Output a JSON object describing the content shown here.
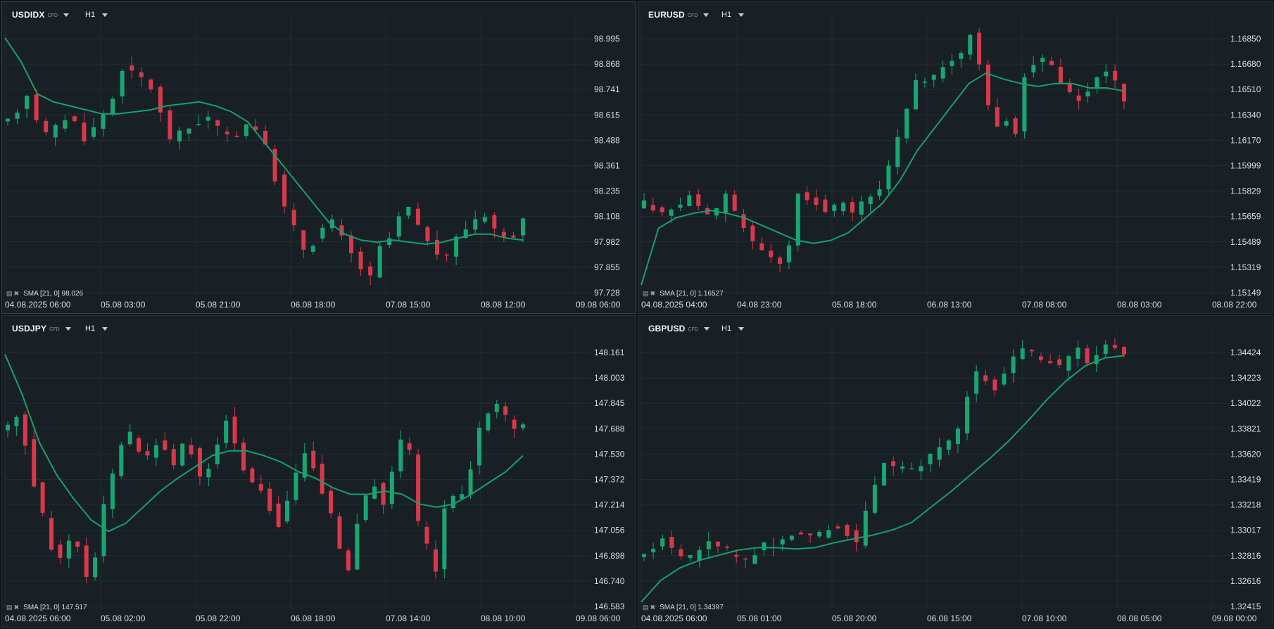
{
  "colors": {
    "bg": "#182025",
    "grid": "#222c33",
    "up": "#17a673",
    "down": "#d9384b",
    "sma": "#15a06c",
    "text": "#d7dce1"
  },
  "icons": {
    "chart_icon": "chart-settings-icon",
    "close": "close-icon",
    "dropdown": "chevron-down-icon"
  },
  "panels": [
    {
      "symbol": "USDIDX",
      "tag": "CFD",
      "timeframe": "H1",
      "indicator": {
        "name": "SMA",
        "params": "[21, 0]",
        "value": "98.026"
      },
      "chart_data": {
        "type": "candlestick",
        "y_ticks": [
          "98.995",
          "98.868",
          "98.741",
          "98.615",
          "98.488",
          "98.361",
          "98.235",
          "98.108",
          "97.982",
          "97.855",
          "97.728"
        ],
        "ylim": [
          97.728,
          98.995
        ],
        "x_ticks": [
          "04.08.2025 06:00",
          "05.08 03:00",
          "05.08 21:00",
          "06.08 18:00",
          "07.08 15:00",
          "08.08 12:00",
          "09.08 06:00"
        ],
        "path": [
          98.58,
          98.64,
          98.72,
          98.6,
          98.52,
          98.55,
          98.6,
          98.58,
          98.5,
          98.55,
          98.62,
          98.7,
          98.85,
          98.82,
          98.8,
          98.75,
          98.62,
          98.5,
          98.52,
          98.55,
          98.58,
          98.6,
          98.55,
          98.5,
          98.52,
          98.57,
          98.55,
          98.45,
          98.3,
          98.15,
          98.05,
          97.95,
          97.98,
          98.05,
          98.08,
          98.0,
          97.92,
          97.85,
          97.8,
          97.95,
          98.0,
          98.1,
          98.15,
          98.05,
          98.0,
          97.9,
          97.92,
          98.0,
          98.05,
          98.1,
          98.12,
          98.05,
          98.0,
          98.02,
          98.08
        ],
        "sma": [
          99.0,
          98.88,
          98.72,
          98.68,
          98.66,
          98.64,
          98.62,
          98.62,
          98.63,
          98.64,
          98.66,
          98.67,
          98.68,
          98.66,
          98.63,
          98.58,
          98.48,
          98.38,
          98.28,
          98.18,
          98.08,
          98.02,
          97.99,
          97.98,
          97.99,
          97.98,
          97.97,
          97.98,
          98.0,
          98.02,
          98.02,
          98.0,
          97.99
        ]
      }
    },
    {
      "symbol": "EURUSD",
      "tag": "CFD",
      "timeframe": "H1",
      "indicator": {
        "name": "SMA",
        "params": "[21, 0]",
        "value": "1.16527"
      },
      "chart_data": {
        "type": "candlestick",
        "y_ticks": [
          "1.16850",
          "1.16680",
          "1.16510",
          "1.16340",
          "1.16170",
          "1.15999",
          "1.15829",
          "1.15659",
          "1.15489",
          "1.15319",
          "1.15149"
        ],
        "ylim": [
          1.15149,
          1.1685
        ],
        "x_ticks": [
          "04.08.2025 04:00",
          "04.08 23:00",
          "05.08 18:00",
          "06.08 13:00",
          "07.08 08:00",
          "08.08 03:00",
          "08.08 22:00"
        ],
        "path": [
          1.1575,
          1.1572,
          1.1568,
          1.157,
          1.1575,
          1.158,
          1.1572,
          1.1565,
          1.157,
          1.158,
          1.1568,
          1.156,
          1.155,
          1.1543,
          1.154,
          1.1535,
          1.1545,
          1.158,
          1.1578,
          1.1575,
          1.157,
          1.1572,
          1.1575,
          1.1568,
          1.1575,
          1.158,
          1.1585,
          1.16,
          1.162,
          1.164,
          1.1655,
          1.1658,
          1.166,
          1.1665,
          1.167,
          1.1675,
          1.1688,
          1.167,
          1.164,
          1.1625,
          1.163,
          1.1622,
          1.166,
          1.1668,
          1.1672,
          1.1665,
          1.1655,
          1.1648,
          1.1645,
          1.165,
          1.1658,
          1.1662,
          1.1655,
          1.1645
        ],
        "sma": [
          1.152,
          1.1558,
          1.1565,
          1.1568,
          1.157,
          1.1568,
          1.1565,
          1.156,
          1.1555,
          1.155,
          1.1548,
          1.155,
          1.1555,
          1.1565,
          1.1575,
          1.159,
          1.161,
          1.1625,
          1.164,
          1.1655,
          1.1662,
          1.1658,
          1.1655,
          1.1653,
          1.1655,
          1.1655,
          1.1652,
          1.1652,
          1.165
        ]
      }
    },
    {
      "symbol": "USDJPY",
      "tag": "CFD",
      "timeframe": "H1",
      "indicator": {
        "name": "SMA",
        "params": "[21, 0]",
        "value": "147.517"
      },
      "chart_data": {
        "type": "candlestick",
        "y_ticks": [
          "148.161",
          "148.003",
          "147.845",
          "147.688",
          "147.530",
          "147.372",
          "147.214",
          "147.056",
          "146.898",
          "146.740",
          "146.583"
        ],
        "ylim": [
          146.583,
          148.161
        ],
        "x_ticks": [
          "04.08.2025 06:00",
          "05.08 02:00",
          "05.08 22:00",
          "06.08 18:00",
          "07.08 14:00",
          "08.08 10:00",
          "09.08 06:00"
        ],
        "path": [
          147.7,
          147.78,
          147.6,
          147.35,
          147.15,
          146.95,
          146.9,
          147.0,
          146.95,
          146.75,
          146.9,
          147.2,
          147.4,
          147.6,
          147.65,
          147.55,
          147.5,
          147.6,
          147.55,
          147.48,
          147.6,
          147.55,
          147.4,
          147.45,
          147.6,
          147.75,
          147.6,
          147.45,
          147.35,
          147.3,
          147.2,
          147.1,
          147.25,
          147.4,
          147.55,
          147.45,
          147.3,
          147.15,
          146.95,
          146.8,
          147.1,
          147.25,
          147.35,
          147.2,
          147.4,
          147.6,
          147.55,
          147.1,
          146.95,
          146.8,
          147.2,
          147.25,
          147.3,
          147.45,
          147.7,
          147.8,
          147.82,
          147.75,
          147.7,
          147.72
        ],
        "sma": [
          148.15,
          147.9,
          147.6,
          147.4,
          147.25,
          147.12,
          147.05,
          147.1,
          147.2,
          147.3,
          147.38,
          147.45,
          147.52,
          147.55,
          147.55,
          147.52,
          147.48,
          147.42,
          147.38,
          147.32,
          147.28,
          147.28,
          147.3,
          147.28,
          147.22,
          147.2,
          147.22,
          147.28,
          147.35,
          147.42,
          147.52
        ]
      }
    },
    {
      "symbol": "GBPUSD",
      "tag": "CFD",
      "timeframe": "H1",
      "indicator": {
        "name": "SMA",
        "params": "[21, 0]",
        "value": "1.34397"
      },
      "chart_data": {
        "type": "candlestick",
        "y_ticks": [
          "1.34424",
          "1.34223",
          "1.34022",
          "1.33821",
          "1.33620",
          "1.33419",
          "1.33218",
          "1.33017",
          "1.32816",
          "1.32616",
          "1.32415"
        ],
        "ylim": [
          1.32415,
          1.34424
        ],
        "x_ticks": [
          "04.08.2025 06:00",
          "05.08 01:00",
          "05.08 20:00",
          "06.08 15:00",
          "07.08 10:00",
          "08.08 05:00",
          "09.08 00:00"
        ],
        "path": [
          1.3282,
          1.329,
          1.3295,
          1.3288,
          1.3282,
          1.328,
          1.3285,
          1.3292,
          1.329,
          1.3285,
          1.328,
          1.3278,
          1.3285,
          1.329,
          1.3288,
          1.3295,
          1.33,
          1.3298,
          1.3295,
          1.3298,
          1.3302,
          1.3305,
          1.33,
          1.329,
          1.3315,
          1.334,
          1.3355,
          1.3352,
          1.335,
          1.3348,
          1.3355,
          1.336,
          1.3365,
          1.337,
          1.338,
          1.341,
          1.3425,
          1.342,
          1.3415,
          1.3425,
          1.344,
          1.3445,
          1.3442,
          1.3438,
          1.3435,
          1.343,
          1.3438,
          1.3444,
          1.3432,
          1.344,
          1.3446,
          1.3448,
          1.3442
        ],
        "sma": [
          1.3245,
          1.3262,
          1.3272,
          1.3278,
          1.3282,
          1.3286,
          1.3288,
          1.3288,
          1.3287,
          1.3288,
          1.3292,
          1.3295,
          1.3298,
          1.3302,
          1.3308,
          1.332,
          1.3332,
          1.3345,
          1.3358,
          1.3372,
          1.3388,
          1.3405,
          1.342,
          1.3432,
          1.3438,
          1.344
        ]
      }
    }
  ]
}
